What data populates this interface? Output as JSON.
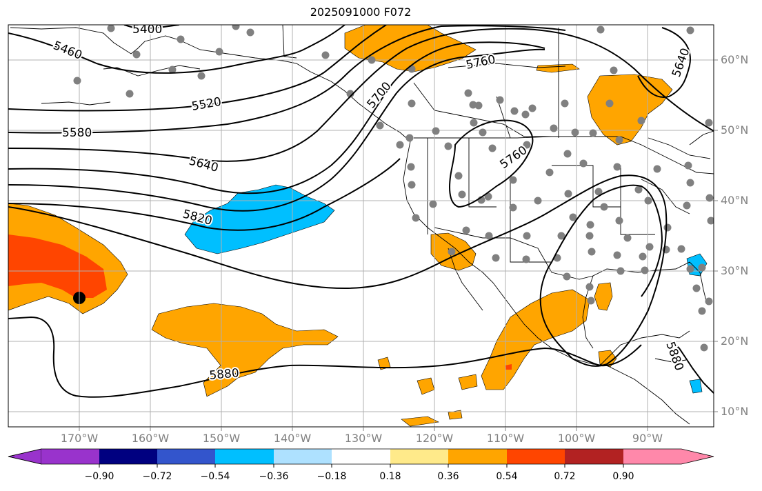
{
  "title": "2025091000 F072",
  "latitude_labels": [
    "60°N",
    "50°N",
    "40°N",
    "30°N",
    "20°N",
    "10°N"
  ],
  "longitude_labels": [
    "170°W",
    "160°W",
    "150°W",
    "140°W",
    "130°W",
    "120°W",
    "110°W",
    "100°W",
    "90°W"
  ],
  "contour_labels": [
    "5400",
    "5460",
    "5520",
    "5580",
    "5640",
    "5700",
    "5760",
    "5640",
    "5820",
    "5760",
    "5880",
    "5880"
  ],
  "colorbar": {
    "ticks": [
      "−0.90",
      "−0.72",
      "−0.54",
      "−0.36",
      "−0.18",
      "0.18",
      "0.36",
      "0.54",
      "0.72",
      "0.90"
    ],
    "colors": [
      "#9933cc",
      "#000080",
      "#3355cc",
      "#00bfff",
      "#aee1ff",
      "#ffffff",
      "#ffea8a",
      "#ffa500",
      "#ff4500",
      "#b22222",
      "#ff88aa"
    ]
  },
  "colors": {
    "positive": "#ffa500",
    "strong_positive": "#ff4500",
    "negative": "#00bfff",
    "light_negative": "#aee1ff",
    "station": "#808080",
    "grid": "#b0b0b0"
  }
}
